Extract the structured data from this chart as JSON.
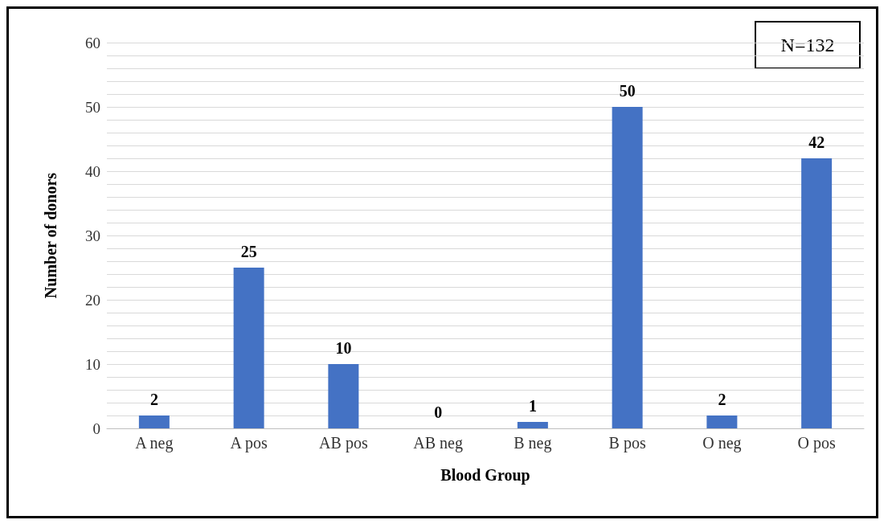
{
  "chart_data": {
    "type": "bar",
    "xlabel": "Blood Group",
    "ylabel": "Number of donors",
    "categories": [
      "A neg",
      "A pos",
      "AB pos",
      "AB neg",
      "B neg",
      "B pos",
      "O neg",
      "O pos"
    ],
    "values": [
      2,
      25,
      10,
      0,
      1,
      50,
      2,
      42
    ],
    "color": "#4472c4",
    "ylim": [
      0,
      60
    ],
    "yticks": [
      0,
      {
        "value": 2,
        "label": null
      },
      {
        "value": 4,
        "label": null
      },
      {
        "value": 6,
        "label": null
      },
      {
        "value": 8,
        "label": null
      },
      10,
      {
        "value": 12,
        "label": null
      },
      {
        "value": 14,
        "label": null
      },
      {
        "value": 16,
        "label": null
      },
      {
        "value": 18,
        "label": null
      },
      20,
      {
        "value": 22,
        "label": null
      },
      {
        "value": 24,
        "label": null
      },
      {
        "value": 26,
        "label": null
      },
      {
        "value": 28,
        "label": null
      },
      30,
      {
        "value": 32,
        "label": null
      },
      {
        "value": 34,
        "label": null
      },
      {
        "value": 36,
        "label": null
      },
      {
        "value": 38,
        "label": null
      },
      40,
      {
        "value": 42,
        "label": null
      },
      {
        "value": 44,
        "label": null
      },
      {
        "value": 46,
        "label": null
      },
      {
        "value": 48,
        "label": null
      },
      50,
      {
        "value": 52,
        "label": null
      },
      {
        "value": 54,
        "label": null
      },
      {
        "value": 56,
        "label": null
      },
      {
        "value": 58,
        "label": null
      },
      60
    ],
    "grid": "y",
    "data_labels": true,
    "annotations": [
      "N=132"
    ]
  }
}
